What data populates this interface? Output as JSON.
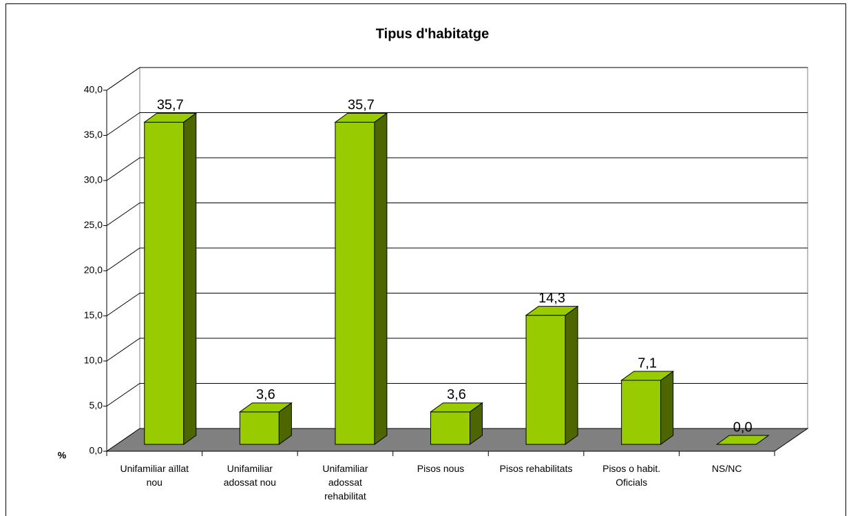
{
  "chart_data": {
    "type": "bar3d",
    "title": "Tipus d'habitatge",
    "y_label": "%",
    "categories": [
      "Unifamiliar aïllat nou",
      "Unifamiliar adossat nou",
      "Unifamiliar adossat rehabilitat",
      "Pisos nous",
      "Pisos rehabilitats",
      "Pisos o habit. Oficials",
      "NS/NC"
    ],
    "values": [
      35.7,
      3.6,
      35.7,
      3.6,
      14.3,
      7.1,
      0.0
    ],
    "value_labels": [
      "35,7",
      "3,6",
      "35,7",
      "3,6",
      "14,3",
      "7,1",
      "0,0"
    ],
    "color": "#99cc00",
    "ylim": [
      0,
      40
    ],
    "yticks": [
      {
        "value": 0,
        "label": "0,0"
      },
      {
        "value": 5,
        "label": "5,0"
      },
      {
        "value": 10,
        "label": "10,0"
      },
      {
        "value": 15,
        "label": "15,0"
      },
      {
        "value": 20,
        "label": "20,0"
      },
      {
        "value": 25,
        "label": "25,0"
      },
      {
        "value": 30,
        "label": "30,0"
      },
      {
        "value": 35,
        "label": "35,0"
      },
      {
        "value": 40,
        "label": "40,0"
      }
    ],
    "grid": true
  }
}
